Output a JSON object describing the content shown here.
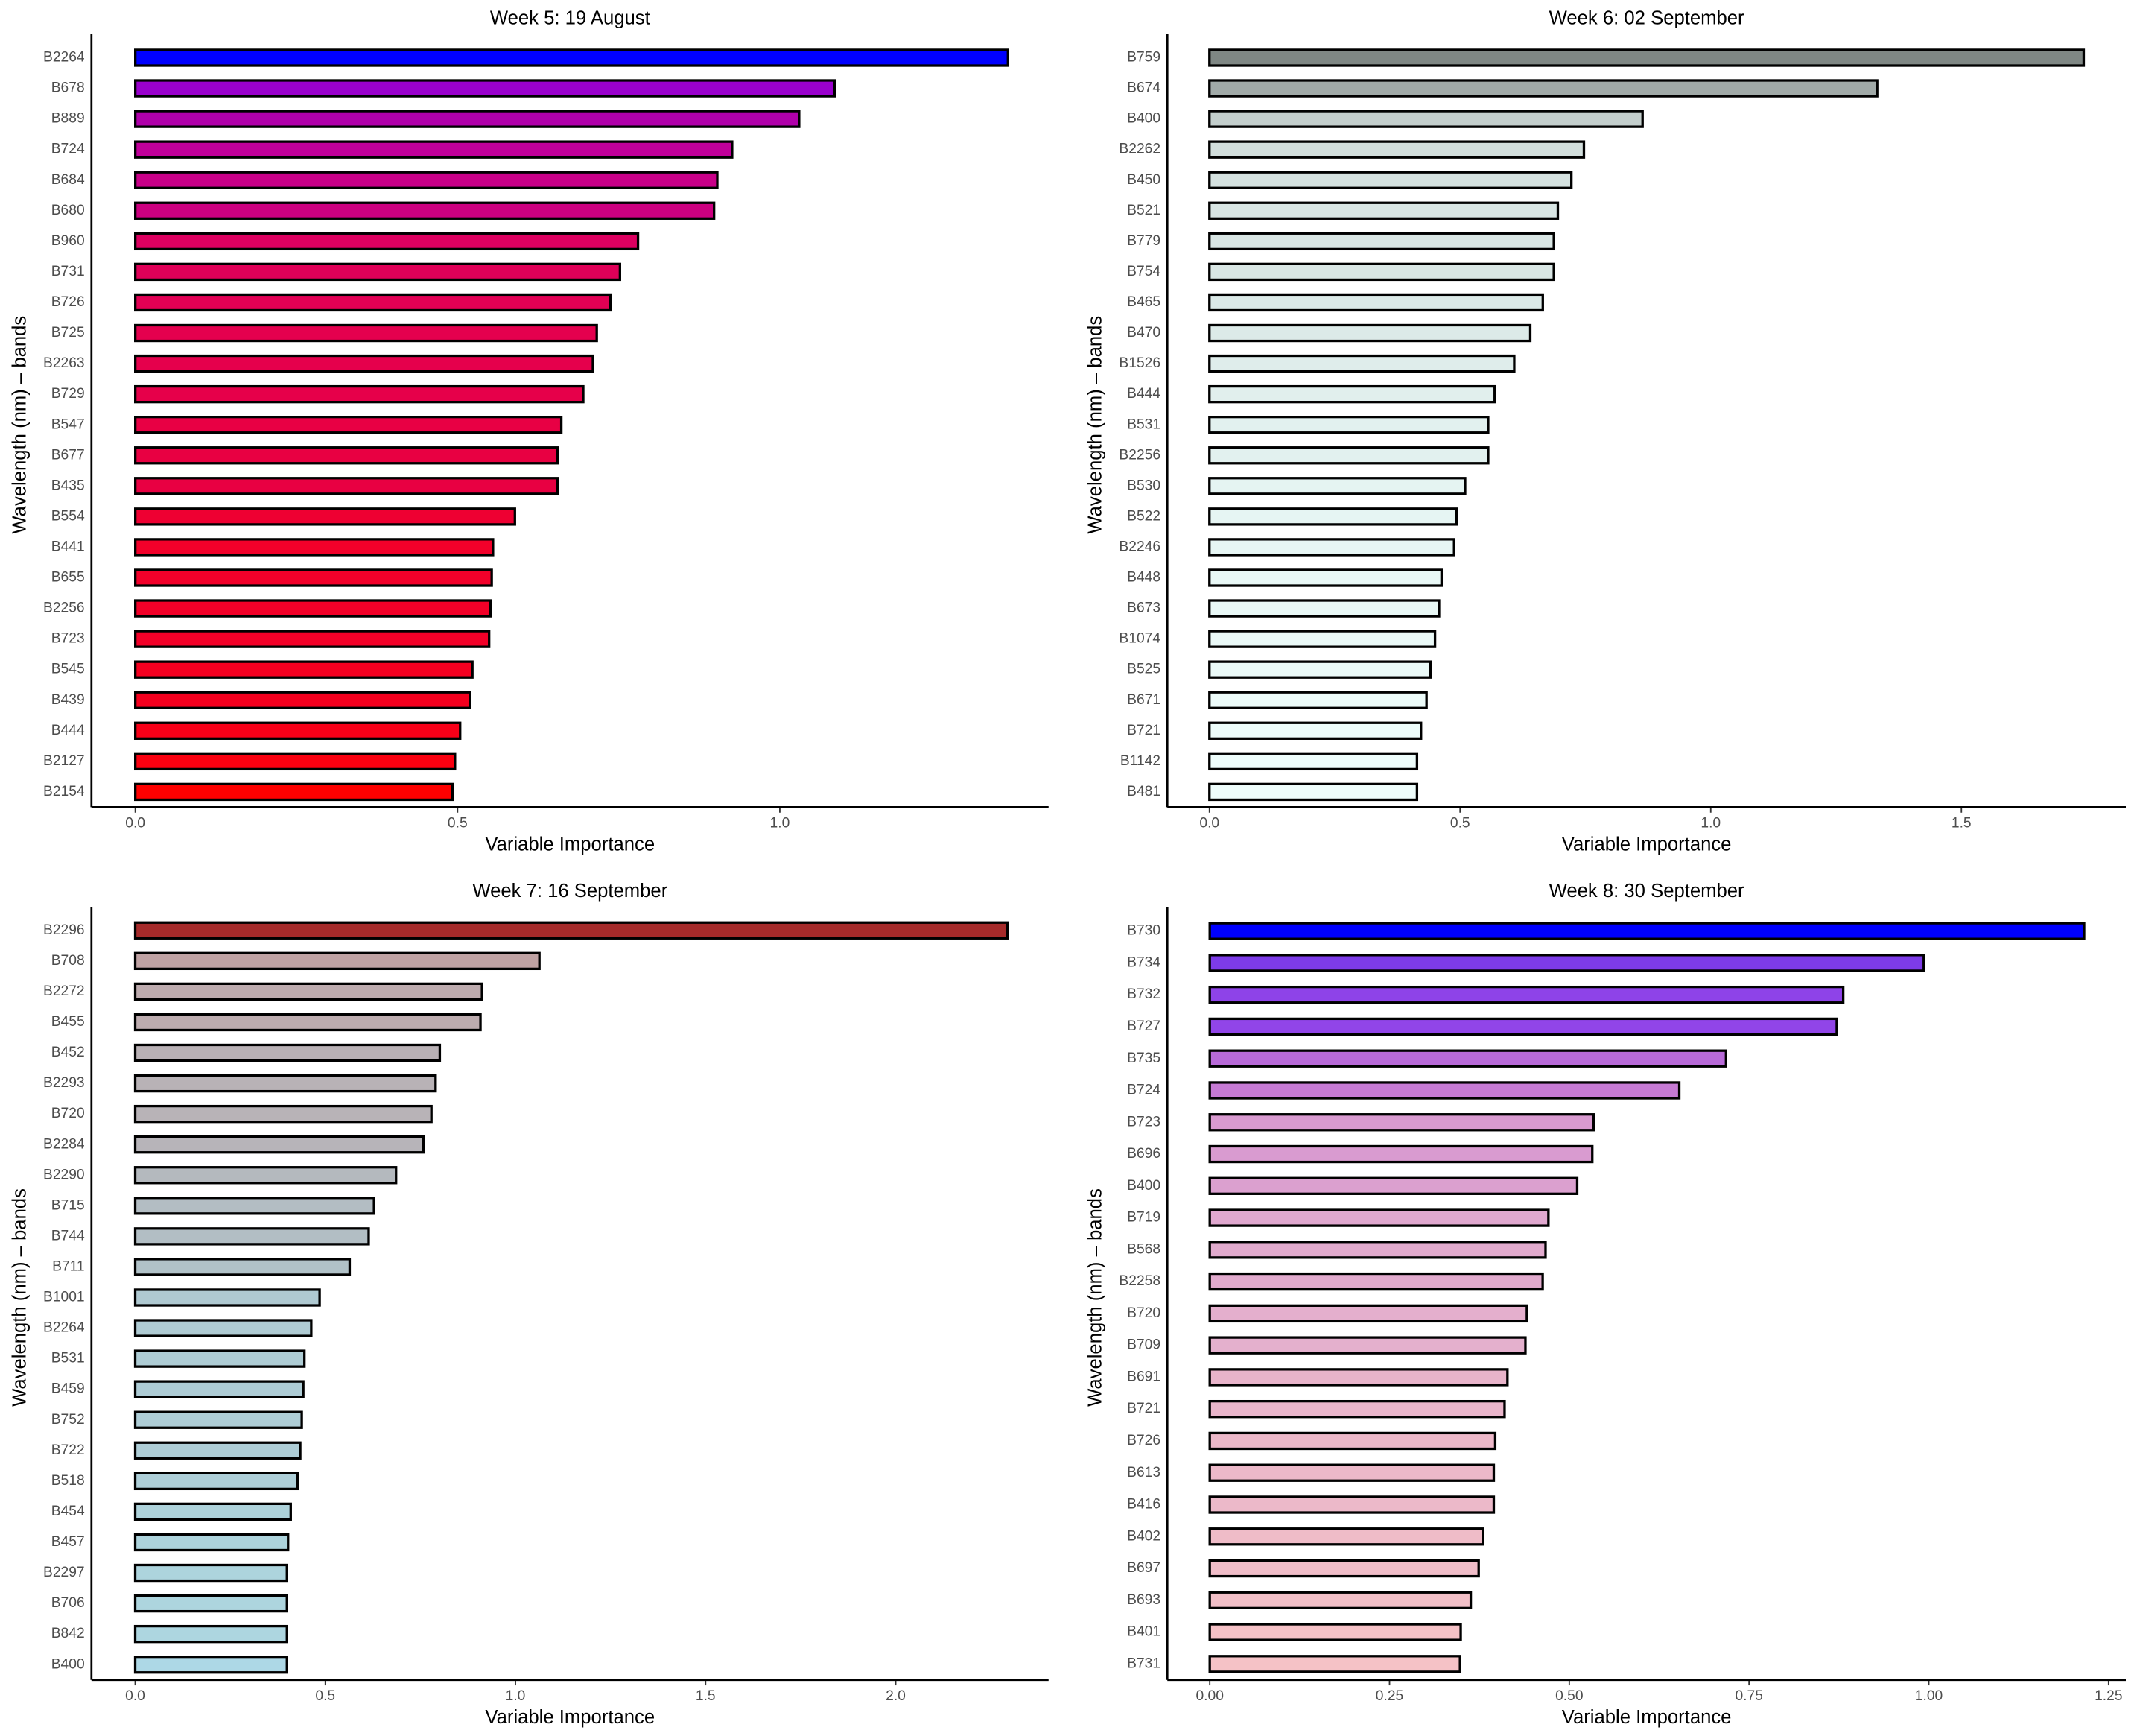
{
  "chart_data": [
    {
      "type": "barh",
      "title": "Week 5: 19 August",
      "xlabel": "Variable Importance",
      "ylabel": "Wavelength (nm) – bands",
      "categories": [
        "B2264",
        "B678",
        "B889",
        "B724",
        "B684",
        "B680",
        "B960",
        "B731",
        "B726",
        "B725",
        "B2263",
        "B729",
        "B547",
        "B677",
        "B435",
        "B554",
        "B441",
        "B655",
        "B2256",
        "B723",
        "B545",
        "B439",
        "B444",
        "B2127",
        "B2154"
      ],
      "values": [
        1.354,
        1.085,
        1.03,
        0.926,
        0.903,
        0.898,
        0.78,
        0.752,
        0.737,
        0.716,
        0.71,
        0.695,
        0.661,
        0.655,
        0.655,
        0.589,
        0.555,
        0.553,
        0.551,
        0.549,
        0.523,
        0.519,
        0.504,
        0.496,
        0.492
      ],
      "colors": [
        "#0000ff",
        "#9900cc",
        "#b000aa",
        "#c0009a",
        "#c80088",
        "#cc0080",
        "#dc0060",
        "#e00058",
        "#e20054",
        "#e4004e",
        "#e5004c",
        "#e6004a",
        "#e80044",
        "#e80042",
        "#e80042",
        "#ee0032",
        "#f2002a",
        "#f2002a",
        "#f20028",
        "#f20028",
        "#f50020",
        "#f5001e",
        "#f80018",
        "#fa0010",
        "#ff0000"
      ],
      "xlim": [
        -0.068,
        1.417
      ],
      "xticks": [
        {
          "value": 0,
          "label": "0.0"
        },
        0.5,
        {
          "value": 1,
          "label": "1.0"
        }
      ]
    },
    {
      "type": "barh",
      "title": "Week 6: 02 September",
      "xlabel": "Variable Importance",
      "ylabel": "Wavelength (nm) – bands",
      "categories": [
        "B759",
        "B674",
        "B400",
        "B2262",
        "B450",
        "B521",
        "B779",
        "B754",
        "B465",
        "B470",
        "B1526",
        "B444",
        "B531",
        "B2256",
        "B530",
        "B522",
        "B2246",
        "B448",
        "B673",
        "B1074",
        "B525",
        "B671",
        "B721",
        "B1142",
        "B481"
      ],
      "values": [
        1.744,
        1.332,
        0.864,
        0.747,
        0.722,
        0.695,
        0.687,
        0.687,
        0.665,
        0.64,
        0.608,
        0.569,
        0.556,
        0.556,
        0.51,
        0.493,
        0.488,
        0.463,
        0.458,
        0.45,
        0.441,
        0.433,
        0.422,
        0.414,
        0.414
      ],
      "colors": [
        "#7f8784",
        "#a1aaa8",
        "#c3cecc",
        "#d2dedc",
        "#d5e2e0",
        "#d8e5e3",
        "#d9e6e4",
        "#d9e6e4",
        "#dbe9e7",
        "#dceae8",
        "#dfedeb",
        "#e1efed",
        "#e2f1ef",
        "#e2f1ef",
        "#e5f4f2",
        "#e6f5f3",
        "#e7f6f4",
        "#e9f8f6",
        "#e9f8f6",
        "#eaf9f7",
        "#ebfaf8",
        "#ecfbf9",
        "#edfcfa",
        "#eefdfb",
        "#eefdfb"
      ],
      "xlim": [
        -0.084,
        1.828
      ],
      "xticks": [
        {
          "value": 0,
          "label": "0.0"
        },
        0.5,
        {
          "value": 1,
          "label": "1.0"
        },
        1.5
      ]
    },
    {
      "type": "barh",
      "title": "Week 7: 16 September",
      "xlabel": "Variable Importance",
      "ylabel": "Wavelength (nm) – bands",
      "categories": [
        "B2296",
        "B708",
        "B2272",
        "B455",
        "B452",
        "B2293",
        "B720",
        "B2284",
        "B2290",
        "B715",
        "B744",
        "B711",
        "B1001",
        "B2264",
        "B531",
        "B459",
        "B752",
        "B722",
        "B518",
        "B454",
        "B457",
        "B2297",
        "B706",
        "B842",
        "B400"
      ],
      "values": [
        2.294,
        1.063,
        0.912,
        0.908,
        0.801,
        0.79,
        0.779,
        0.758,
        0.686,
        0.628,
        0.614,
        0.564,
        0.485,
        0.463,
        0.445,
        0.442,
        0.438,
        0.434,
        0.427,
        0.409,
        0.402,
        0.399,
        0.399,
        0.399,
        0.399
      ],
      "colors": [
        "#a52a2a",
        "#bfa2a3",
        "#bdabae",
        "#bdacaf",
        "#b9b1b5",
        "#b8b2b6",
        "#b8b3b7",
        "#b7b4b9",
        "#b4b9be",
        "#b3bdc3",
        "#b2bec4",
        "#b1c2c8",
        "#afc9d1",
        "#afcbd3",
        "#aeccd4",
        "#aeccd5",
        "#aecdd6",
        "#aecdd6",
        "#aecfd8",
        "#aed2da",
        "#add3dc",
        "#add4dd",
        "#add5de",
        "#add6e0",
        "#add8e6"
      ],
      "xlim": [
        -0.115,
        2.402
      ],
      "xticks": [
        {
          "value": 0,
          "label": "0.0"
        },
        0.5,
        {
          "value": 1,
          "label": "1.0"
        },
        1.5,
        {
          "value": 2,
          "label": "2.0"
        }
      ]
    },
    {
      "type": "barh",
      "title": "Week 8: 30 September",
      "xlabel": "Variable Importance",
      "ylabel": "Wavelength (nm) – bands",
      "categories": [
        "B730",
        "B734",
        "B732",
        "B727",
        "B735",
        "B724",
        "B723",
        "B696",
        "B400",
        "B719",
        "B568",
        "B2258",
        "B720",
        "B709",
        "B691",
        "B721",
        "B726",
        "B613",
        "B416",
        "B402",
        "B697",
        "B693",
        "B401",
        "B731"
      ],
      "values": [
        1.216,
        0.993,
        0.881,
        0.872,
        0.718,
        0.653,
        0.534,
        0.532,
        0.511,
        0.471,
        0.467,
        0.463,
        0.441,
        0.439,
        0.414,
        0.41,
        0.397,
        0.395,
        0.395,
        0.38,
        0.374,
        0.363,
        0.349,
        0.348
      ],
      "colors": [
        "#0000ff",
        "#7d3be8",
        "#8e43e8",
        "#9145e8",
        "#b86ad8",
        "#c67ad4",
        "#d99ad0",
        "#d99bd0",
        "#dba0cf",
        "#e0a8cf",
        "#e1aacd",
        "#e1aacd",
        "#e4afcd",
        "#e4b0cd",
        "#e8b4ca",
        "#e9b5ca",
        "#ecb8c9",
        "#ecb9c9",
        "#ecb9c9",
        "#efbcc8",
        "#f0bdc8",
        "#f2bfc7",
        "#f5c1c6",
        "#f5c2c6"
      ],
      "xlim": [
        -0.059,
        1.274
      ],
      "xticks": [
        {
          "value": 0,
          "label": "0.00"
        },
        {
          "value": 0.25,
          "label": "0.25"
        },
        {
          "value": 0.5,
          "label": "0.50"
        },
        {
          "value": 0.75,
          "label": "0.75"
        },
        {
          "value": 1,
          "label": "1.00"
        },
        {
          "value": 1.25,
          "label": "1.25"
        }
      ]
    }
  ]
}
